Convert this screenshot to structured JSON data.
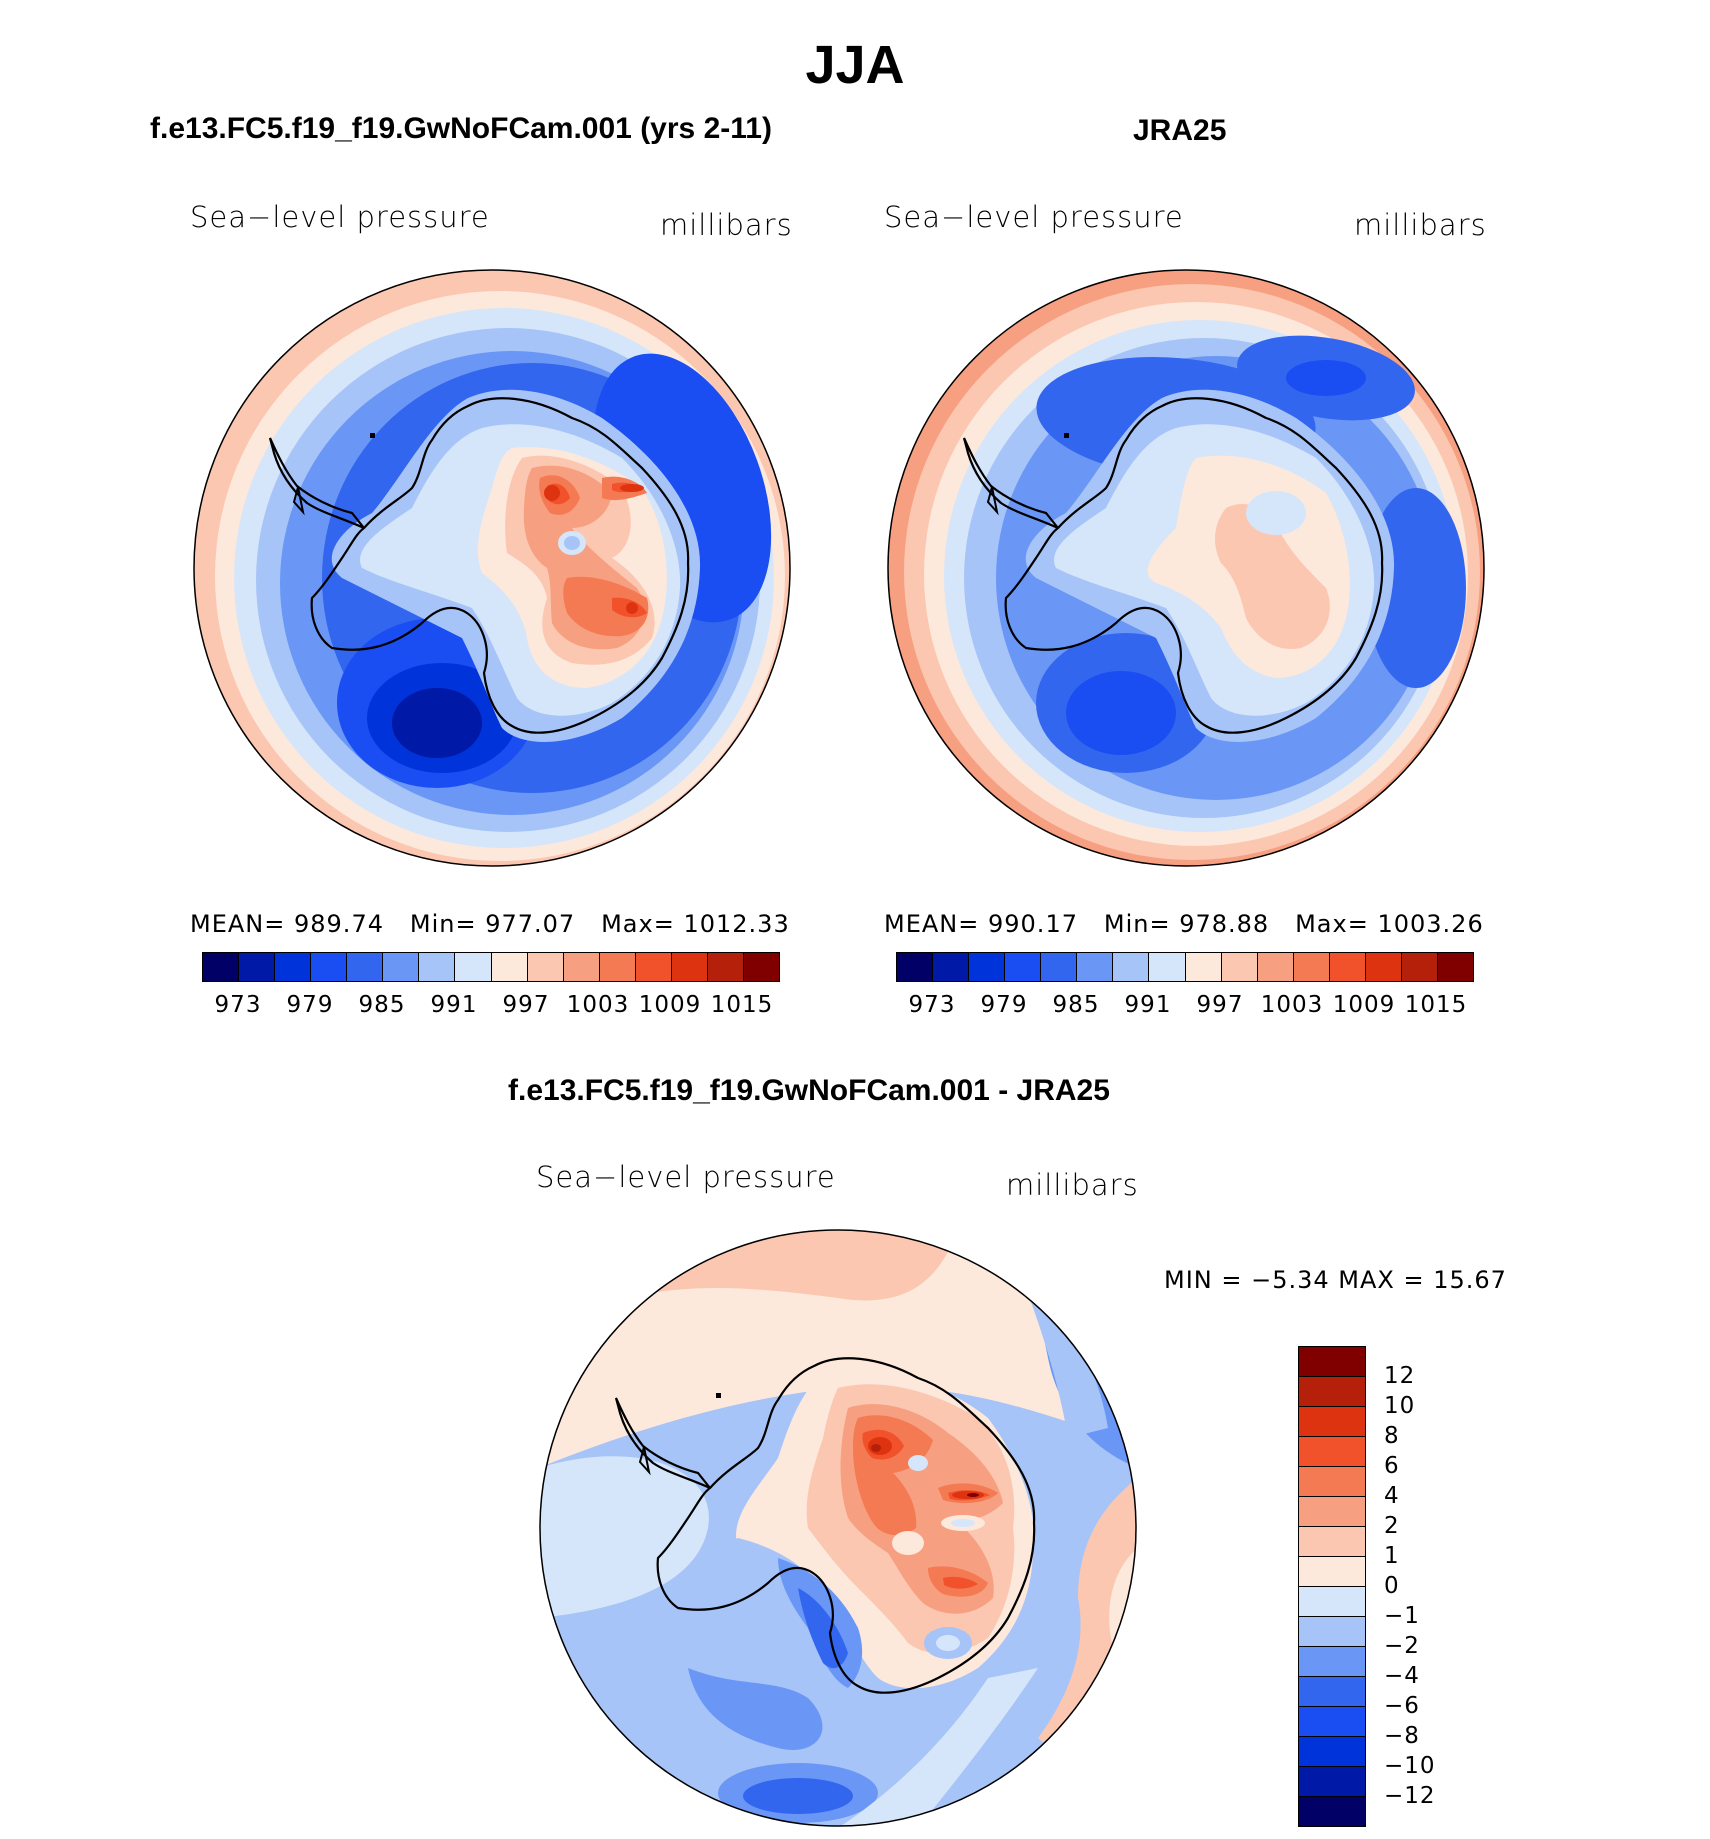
{
  "figure_title": "JJA",
  "panels": [
    {
      "title": "f.e13.FC5.f19_f19.GwNoFCam.001 (yrs 2-11)",
      "variable": "Sea−level pressure",
      "units": "millibars",
      "mean_label": "MEAN=",
      "mean": "989.74",
      "min_label": "Min=",
      "min": "977.07",
      "max_label": "Max=",
      "max": "1012.33"
    },
    {
      "title": "JRA25",
      "variable": "Sea−level pressure",
      "units": "millibars",
      "mean_label": "MEAN=",
      "mean": "990.17",
      "min_label": "Min=",
      "min": "978.88",
      "max_label": "Max=",
      "max": "1003.26"
    },
    {
      "title": "f.e13.FC5.f19_f19.GwNoFCam.001 - JRA25",
      "variable": "Sea−level pressure",
      "units": "millibars",
      "minmax_text": "MIN =   −5.34 MAX =   15.67"
    }
  ],
  "colorbar_slp": {
    "colors": [
      "#000066",
      "#0019a6",
      "#0033d9",
      "#1a4df2",
      "#3366ee",
      "#6a97f5",
      "#a6c4f7",
      "#d6e6fa",
      "#fde8dc",
      "#fbc7b1",
      "#f79f81",
      "#f47a53",
      "#f2522b",
      "#de3311",
      "#b5200a",
      "#800000"
    ],
    "ticks": [
      "973",
      "979",
      "985",
      "991",
      "997",
      "1003",
      "1009",
      "1015"
    ]
  },
  "colorbar_diff": {
    "colors_top_to_bottom": [
      "#800000",
      "#b5200a",
      "#de3311",
      "#f2522b",
      "#f47a53",
      "#f79f81",
      "#fbc7b1",
      "#fde8dc",
      "#d6e6fa",
      "#a6c4f7",
      "#6a97f5",
      "#3366ee",
      "#1a4df2",
      "#0033d9",
      "#0019a6",
      "#000066"
    ],
    "ticks_top_to_bottom": [
      "12",
      "10",
      "8",
      "6",
      "4",
      "2",
      "1",
      "0",
      "−1",
      "−2",
      "−4",
      "−6",
      "−8",
      "−10",
      "−12"
    ]
  }
}
